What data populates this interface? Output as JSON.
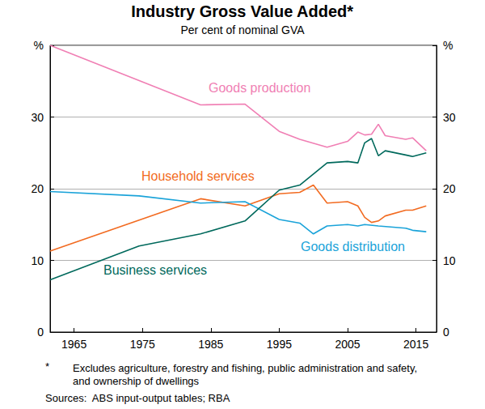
{
  "chart_data": {
    "type": "line",
    "title": "Industry Gross Value Added*",
    "subtitle": "Per cent of nominal GVA",
    "footnote": {
      "mark": "*",
      "text": "Excludes agriculture, forestry and fishing, public administration and safety, and ownership of dwellings"
    },
    "source": "Sources:  ABS input-output tables; RBA",
    "xlim": [
      1961.5,
      2018
    ],
    "xticks": [
      1965,
      1975,
      1985,
      1995,
      2005,
      2015
    ],
    "ylim": [
      0,
      40
    ],
    "yticks": [
      0,
      10,
      20,
      30,
      {
        "value": 40,
        "label": "%"
      }
    ],
    "grid": true,
    "series": [
      {
        "name": "Goods production",
        "color": "#f07fb4",
        "x": [
          1961.5,
          1983.5,
          1990,
          1995,
          1998,
          2002,
          2005,
          2006.5,
          2007.5,
          2008.5,
          2009.5,
          2010.5,
          2013.5,
          2014.5,
          2016.5
        ],
        "values": [
          40,
          31.7,
          31.8,
          28,
          26.9,
          25.8,
          26.6,
          27.9,
          27.5,
          27.6,
          29,
          27.4,
          26.9,
          27.1,
          25.3
        ]
      },
      {
        "name": "Household services",
        "color": "#f26b21",
        "x": [
          1961.5,
          1983.5,
          1990,
          1995,
          1998,
          2000,
          2002,
          2005,
          2006.5,
          2007.5,
          2008.5,
          2009.5,
          2010.5,
          2013.5,
          2014.5,
          2016.5
        ],
        "values": [
          11.3,
          18.6,
          17.6,
          19.3,
          19.5,
          20.5,
          18,
          18.2,
          17.6,
          16,
          15.3,
          15.5,
          16.2,
          17,
          17,
          17.6
        ]
      },
      {
        "name": "Goods distribution",
        "color": "#1aa3d9",
        "x": [
          1961.5,
          1974.5,
          1983.5,
          1990,
          1995,
          1998,
          2000,
          2002,
          2005,
          2006.5,
          2007.5,
          2009.5,
          2013.5,
          2014.5,
          2016.5
        ],
        "values": [
          19.6,
          19,
          18,
          18.2,
          15.7,
          15.2,
          13.7,
          14.8,
          15,
          14.8,
          15,
          14.8,
          14.5,
          14.2,
          14
        ]
      },
      {
        "name": "Business services",
        "color": "#00695c",
        "x": [
          1961.5,
          1974.5,
          1983.5,
          1990,
          1995,
          1998,
          2002,
          2005,
          2006.5,
          2007.5,
          2008.5,
          2009.5,
          2010.5,
          2013.5,
          2014.5,
          2016.5
        ],
        "values": [
          7.3,
          12,
          13.7,
          15.5,
          19.8,
          20.5,
          23.6,
          23.8,
          23.6,
          26.4,
          27,
          24.6,
          25.3,
          24.7,
          24.5,
          25
        ]
      }
    ]
  }
}
